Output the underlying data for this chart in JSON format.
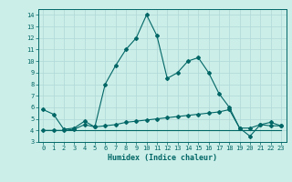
{
  "xlabel": "Humidex (Indice chaleur)",
  "background_color": "#cceee8",
  "grid_color": "#b0d8d8",
  "line_color": "#006666",
  "xlim": [
    -0.5,
    23.5
  ],
  "ylim": [
    3,
    14.5
  ],
  "yticks": [
    3,
    4,
    5,
    6,
    7,
    8,
    9,
    10,
    11,
    12,
    13,
    14
  ],
  "xticks": [
    0,
    1,
    2,
    3,
    4,
    5,
    6,
    7,
    8,
    9,
    10,
    11,
    12,
    13,
    14,
    15,
    16,
    17,
    18,
    19,
    20,
    21,
    22,
    23
  ],
  "series1_x": [
    0,
    1,
    2,
    3,
    4,
    5,
    6,
    7,
    8,
    9,
    10,
    11,
    12,
    13,
    14,
    15,
    16,
    17,
    18,
    19,
    20,
    21,
    22,
    23
  ],
  "series1_y": [
    5.8,
    5.4,
    4.1,
    4.2,
    4.8,
    4.3,
    8.0,
    9.6,
    11.0,
    12.0,
    14.0,
    12.2,
    8.5,
    9.0,
    10.0,
    10.3,
    9.0,
    7.2,
    6.0,
    4.2,
    3.5,
    4.5,
    4.4,
    4.4
  ],
  "series2_x": [
    0,
    1,
    2,
    3,
    4,
    5,
    6,
    7,
    8,
    9,
    10,
    11,
    12,
    13,
    14,
    15,
    16,
    17,
    18,
    19,
    20,
    21,
    22,
    23
  ],
  "series2_y": [
    4.0,
    4.0,
    4.0,
    4.1,
    4.5,
    4.3,
    4.4,
    4.5,
    4.7,
    4.8,
    4.9,
    5.0,
    5.1,
    5.2,
    5.3,
    5.4,
    5.5,
    5.6,
    5.8,
    4.2,
    4.2,
    4.5,
    4.7,
    4.4
  ],
  "series3_x": [
    0,
    1,
    2,
    3,
    4,
    5,
    6,
    7,
    8,
    9,
    10,
    11,
    12,
    13,
    14,
    15,
    16,
    17,
    18,
    19,
    20,
    21,
    22,
    23
  ],
  "series3_y": [
    4.0,
    4.0,
    4.0,
    4.0,
    4.0,
    4.0,
    4.0,
    4.0,
    4.0,
    4.0,
    4.0,
    4.0,
    4.0,
    4.0,
    4.0,
    4.0,
    4.0,
    4.0,
    4.0,
    4.0,
    4.0,
    4.0,
    4.0,
    4.0
  ],
  "xlabel_fontsize": 6.0,
  "tick_fontsize": 5.0
}
